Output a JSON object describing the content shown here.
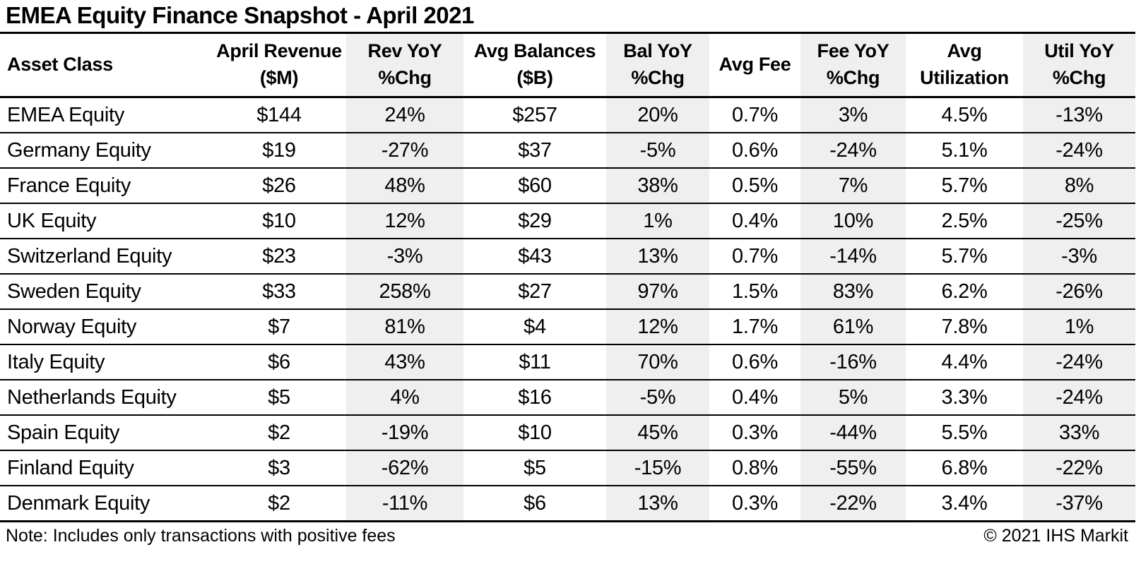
{
  "title": "EMEA Equity Finance Snapshot - April 2021",
  "colors": {
    "background": "#ffffff",
    "text": "#000000",
    "border": "#000000",
    "shaded_column_bg": "#efefef"
  },
  "table": {
    "columns": [
      {
        "key": "asset_class",
        "line1": "Asset Class",
        "line2": "",
        "shaded": false,
        "align": "left"
      },
      {
        "key": "april_revenue",
        "line1": "April Revenue",
        "line2": "($M)",
        "shaded": false,
        "align": "center"
      },
      {
        "key": "rev_yoy",
        "line1": "Rev YoY",
        "line2": "%Chg",
        "shaded": true,
        "align": "center"
      },
      {
        "key": "avg_balances",
        "line1": "Avg Balances",
        "line2": "($B)",
        "shaded": false,
        "align": "center"
      },
      {
        "key": "bal_yoy",
        "line1": "Bal YoY",
        "line2": "%Chg",
        "shaded": true,
        "align": "center"
      },
      {
        "key": "avg_fee",
        "line1": "Avg Fee",
        "line2": "",
        "shaded": false,
        "align": "center"
      },
      {
        "key": "fee_yoy",
        "line1": "Fee YoY",
        "line2": "%Chg",
        "shaded": true,
        "align": "center"
      },
      {
        "key": "avg_utilization",
        "line1": "Avg",
        "line2": "Utilization",
        "shaded": false,
        "align": "center"
      },
      {
        "key": "util_yoy",
        "line1": "Util YoY",
        "line2": "%Chg",
        "shaded": true,
        "align": "center"
      }
    ]
  },
  "footer": {
    "note": "Note: Includes only transactions with positive fees",
    "copyright": "© 2021 IHS Markit"
  },
  "chart_data": {
    "type": "table",
    "title": "EMEA Equity Finance Snapshot - April 2021",
    "columns": [
      "Asset Class",
      "April Revenue ($M)",
      "Rev YoY %Chg",
      "Avg Balances ($B)",
      "Bal YoY %Chg",
      "Avg Fee",
      "Fee YoY %Chg",
      "Avg Utilization",
      "Util YoY %Chg"
    ],
    "rows": [
      [
        "EMEA Equity",
        "$144",
        "24%",
        "$257",
        "20%",
        "0.7%",
        "3%",
        "4.5%",
        "-13%"
      ],
      [
        "Germany Equity",
        "$19",
        "-27%",
        "$37",
        "-5%",
        "0.6%",
        "-24%",
        "5.1%",
        "-24%"
      ],
      [
        "France Equity",
        "$26",
        "48%",
        "$60",
        "38%",
        "0.5%",
        "7%",
        "5.7%",
        "8%"
      ],
      [
        "UK Equity",
        "$10",
        "12%",
        "$29",
        "1%",
        "0.4%",
        "10%",
        "2.5%",
        "-25%"
      ],
      [
        "Switzerland Equity",
        "$23",
        "-3%",
        "$43",
        "13%",
        "0.7%",
        "-14%",
        "5.7%",
        "-3%"
      ],
      [
        "Sweden Equity",
        "$33",
        "258%",
        "$27",
        "97%",
        "1.5%",
        "83%",
        "6.2%",
        "-26%"
      ],
      [
        "Norway Equity",
        "$7",
        "81%",
        "$4",
        "12%",
        "1.7%",
        "61%",
        "7.8%",
        "1%"
      ],
      [
        "Italy Equity",
        "$6",
        "43%",
        "$11",
        "70%",
        "0.6%",
        "-16%",
        "4.4%",
        "-24%"
      ],
      [
        "Netherlands Equity",
        "$5",
        "4%",
        "$16",
        "-5%",
        "0.4%",
        "5%",
        "3.3%",
        "-24%"
      ],
      [
        "Spain Equity",
        "$2",
        "-19%",
        "$10",
        "45%",
        "0.3%",
        "-44%",
        "5.5%",
        "33%"
      ],
      [
        "Finland Equity",
        "$3",
        "-62%",
        "$5",
        "-15%",
        "0.8%",
        "-55%",
        "6.8%",
        "-22%"
      ],
      [
        "Denmark Equity",
        "$2",
        "-11%",
        "$6",
        "13%",
        "0.3%",
        "-22%",
        "3.4%",
        "-37%"
      ]
    ]
  }
}
